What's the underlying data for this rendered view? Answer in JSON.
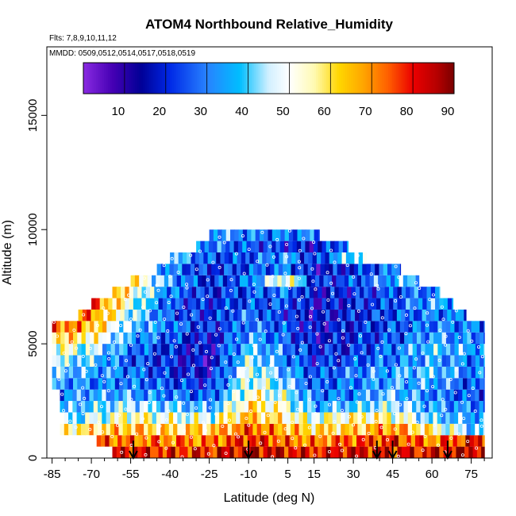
{
  "chart_data": {
    "type": "heatmap",
    "title": "ATOM4 Northbound Relative_Humidity",
    "subtitle_flights": "Flts: 7,8,9,10,11,12",
    "subtitle_dates": "MMDD: 0509,0512,0514,0517,0518,0519",
    "xlabel": "Latitude (deg N)",
    "ylabel": "Altitude (m)",
    "xlim": [
      -87,
      83
    ],
    "ylim": [
      0,
      18000
    ],
    "x_ticks": [
      -85,
      -70,
      -55,
      -40,
      -25,
      -10,
      5,
      15,
      30,
      45,
      60,
      75
    ],
    "x_tick_labels": [
      "-85",
      "-70",
      "-55",
      "-40",
      "-25",
      "-10",
      "5",
      "15",
      "30",
      "45",
      "60",
      "75"
    ],
    "y_ticks": [
      0,
      5000,
      10000,
      15000
    ],
    "y_tick_labels": [
      "0",
      "5000",
      "10000",
      "15000"
    ],
    "colorbar": {
      "min": 0,
      "max": 90,
      "ticks": [
        10,
        20,
        30,
        40,
        50,
        60,
        70,
        80,
        90
      ],
      "tick_labels": [
        "10",
        "20",
        "30",
        "40",
        "50",
        "60",
        "70",
        "80",
        "90"
      ],
      "placement": "top-inside"
    },
    "profile_arrows_latitude": [
      -54,
      -10,
      39,
      45,
      66
    ],
    "altitude_bands_m": [
      250,
      750,
      1250,
      1750,
      2250,
      2750,
      3250,
      3750,
      4250,
      4750,
      5250,
      5750,
      6250,
      6750,
      7250,
      7750,
      8250,
      8750,
      9250,
      9750
    ],
    "band_latitude_extent": [
      [
        -62,
        80
      ],
      [
        -68,
        80
      ],
      [
        -82,
        80
      ],
      [
        -82,
        80
      ],
      [
        -82,
        80
      ],
      [
        -82,
        80
      ],
      [
        -85,
        80
      ],
      [
        -85,
        80
      ],
      [
        -85,
        80
      ],
      [
        -85,
        80
      ],
      [
        -85,
        80
      ],
      [
        -85,
        80
      ],
      [
        -75,
        73
      ],
      [
        -70,
        68
      ],
      [
        -62,
        63
      ],
      [
        -55,
        55
      ],
      [
        -45,
        48
      ],
      [
        -40,
        35
      ],
      [
        -30,
        28
      ],
      [
        -25,
        17
      ]
    ],
    "lat_grid": [
      -85,
      -70,
      -55,
      -40,
      -25,
      -10,
      5,
      15,
      30,
      45,
      60,
      75
    ],
    "rh_grid": [
      [
        75,
        80,
        82,
        78,
        80,
        85,
        82,
        80,
        84,
        80,
        82,
        85
      ],
      [
        70,
        75,
        72,
        72,
        70,
        80,
        72,
        70,
        75,
        78,
        70,
        80
      ],
      [
        55,
        60,
        65,
        60,
        62,
        75,
        65,
        60,
        62,
        70,
        55,
        40
      ],
      [
        40,
        45,
        55,
        50,
        48,
        65,
        55,
        50,
        55,
        55,
        40,
        35
      ],
      [
        35,
        40,
        45,
        40,
        35,
        60,
        50,
        35,
        40,
        45,
        35,
        30
      ],
      [
        30,
        35,
        35,
        30,
        25,
        55,
        45,
        30,
        30,
        40,
        30,
        25
      ],
      [
        35,
        30,
        30,
        25,
        20,
        50,
        40,
        25,
        30,
        35,
        35,
        25
      ],
      [
        40,
        35,
        30,
        20,
        15,
        50,
        35,
        25,
        30,
        35,
        40,
        30
      ],
      [
        45,
        40,
        25,
        20,
        12,
        45,
        30,
        20,
        25,
        30,
        35,
        30
      ],
      [
        55,
        45,
        30,
        20,
        15,
        40,
        30,
        20,
        20,
        30,
        40,
        35
      ],
      [
        65,
        55,
        35,
        25,
        15,
        35,
        25,
        15,
        20,
        25,
        35,
        30
      ],
      [
        75,
        65,
        40,
        30,
        20,
        30,
        25,
        15,
        20,
        25,
        30,
        30
      ],
      [
        80,
        70,
        45,
        25,
        20,
        30,
        20,
        15,
        20,
        25,
        30,
        30
      ],
      [
        80,
        75,
        50,
        25,
        20,
        25,
        25,
        15,
        20,
        25,
        35,
        35
      ],
      [
        80,
        75,
        55,
        30,
        20,
        25,
        30,
        15,
        20,
        25,
        30,
        30
      ],
      [
        75,
        70,
        60,
        35,
        20,
        30,
        55,
        20,
        25,
        35,
        45,
        40
      ],
      [
        70,
        65,
        55,
        30,
        20,
        25,
        30,
        15,
        20,
        30,
        40,
        35
      ],
      [
        65,
        60,
        50,
        40,
        25,
        25,
        35,
        20,
        45,
        50,
        45,
        40
      ],
      [
        60,
        55,
        45,
        45,
        30,
        25,
        20,
        15,
        35,
        40,
        40,
        40
      ],
      [
        55,
        50,
        45,
        40,
        35,
        30,
        30,
        30,
        30,
        30,
        30,
        30
      ]
    ]
  }
}
